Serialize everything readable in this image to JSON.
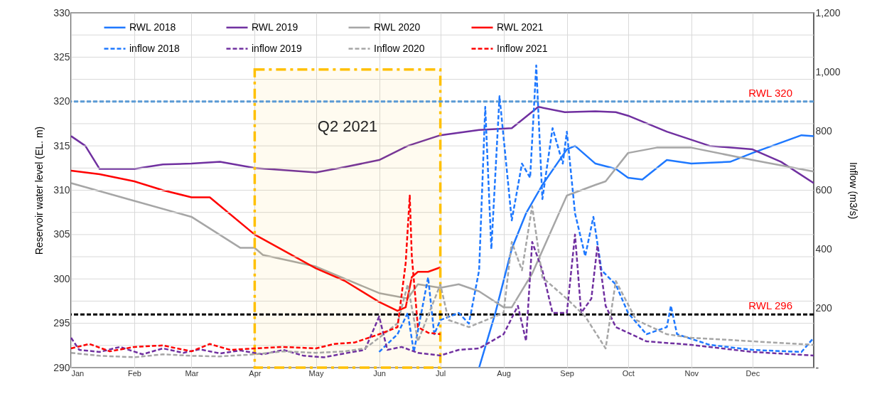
{
  "chart_data": {
    "type": "line",
    "ylabel": "Reservoir water level (EL. m)",
    "y2label": "Inflow (m3/s)",
    "xlim": [
      "--01-01",
      "--12-31"
    ],
    "xticks": [
      {
        "value": "--01-01",
        "label": "Jan"
      },
      {
        "value": "--02-01",
        "label": "Feb"
      },
      {
        "value": "--03-01",
        "label": "Mar"
      },
      {
        "value": "--04-01",
        "label": "Apr"
      },
      {
        "value": "--05-01",
        "label": "May"
      },
      {
        "value": "--06-01",
        "label": "Jun"
      },
      {
        "value": "--07-01",
        "label": "Jul"
      },
      {
        "value": "--08-01",
        "label": "Aug"
      },
      {
        "value": "--09-01",
        "label": "Sep"
      },
      {
        "value": "--10-01",
        "label": "Oct"
      },
      {
        "value": "--11-01",
        "label": "Nov"
      },
      {
        "value": "--12-01",
        "label": "Dec"
      }
    ],
    "ylim": [
      290,
      330
    ],
    "yticks": [
      290,
      {
        "value": 292.5,
        "label": null
      },
      295,
      {
        "value": 297.5,
        "label": null
      },
      300,
      {
        "value": 302.5,
        "label": null
      },
      305,
      {
        "value": 307.5,
        "label": null
      },
      310,
      {
        "value": 312.5,
        "label": null
      },
      315,
      {
        "value": 317.5,
        "label": null
      },
      320,
      {
        "value": 322.5,
        "label": null
      },
      325,
      {
        "value": 327.5,
        "label": null
      },
      330
    ],
    "y2lim": [
      0,
      1200
    ],
    "y2ticks": [
      {
        "value": 0,
        "label": "-"
      },
      200,
      400,
      600,
      800,
      {
        "value": 1000,
        "label": "1,000"
      },
      {
        "value": 1200,
        "label": "1,200"
      }
    ],
    "grid": true,
    "legend": "top",
    "series": [
      {
        "name": "RWL 2018",
        "color": "#1e78ff",
        "line_style": "solid",
        "x": [
          "--07-20",
          "--07-28",
          "--08-05",
          "--08-12",
          "--08-20",
          "--09-01",
          "--09-05",
          "--09-15",
          "--09-25",
          "--10-01",
          "--10-08",
          "--10-20",
          "--11-01",
          "--11-20",
          "--12-01",
          "--12-25",
          "--12-31"
        ],
        "values": [
          290,
          296.2,
          303.4,
          307.4,
          310.6,
          314.6,
          315,
          313,
          312.4,
          311.4,
          311.2,
          313.4,
          313,
          313.2,
          314.2,
          316.2,
          316.1
        ]
      },
      {
        "name": "RWL 2019",
        "color": "#7030a0",
        "line_style": "solid",
        "x": [
          "--01-01",
          "--01-08",
          "--01-15",
          "--02-01",
          "--02-15",
          "--03-01",
          "--03-15",
          "--04-01",
          "--05-01",
          "--05-15",
          "--06-01",
          "--06-15",
          "--07-01",
          "--07-20",
          "--08-05",
          "--08-18",
          "--08-31",
          "--09-15",
          "--09-25",
          "--10-01",
          "--10-20",
          "--11-10",
          "--12-01",
          "--12-15",
          "--12-31"
        ],
        "values": [
          316.1,
          315,
          312.4,
          312.4,
          312.9,
          313,
          313.2,
          312.5,
          312,
          312.6,
          313.4,
          315,
          316.2,
          316.8,
          317,
          319.4,
          318.8,
          318.9,
          318.8,
          318.4,
          316.6,
          315,
          314.6,
          313.2,
          310.8
        ]
      },
      {
        "name": "RWL 2020",
        "color": "#a6a6a6",
        "line_style": "solid",
        "x": [
          "--01-01",
          "--02-01",
          "--03-01",
          "--03-25",
          "--04-01",
          "--04-05",
          "--05-01",
          "--06-01",
          "--06-15",
          "--06-20",
          "--07-01",
          "--07-10",
          "--07-20",
          "--08-01",
          "--08-05",
          "--08-15",
          "--09-01",
          "--09-15",
          "--09-20",
          "--10-01",
          "--10-15",
          "--11-01",
          "--12-01",
          "--12-31"
        ],
        "values": [
          310.8,
          308.8,
          307,
          303.5,
          303.5,
          302.7,
          301.4,
          298.4,
          297.8,
          299.4,
          299,
          299.4,
          298.6,
          296.8,
          296.8,
          300.6,
          309.4,
          310.6,
          311,
          314.2,
          314.8,
          314.8,
          313.4,
          312.1
        ]
      },
      {
        "name": "RWL 2021",
        "color": "#ff0000",
        "line_style": "solid",
        "x": [
          "--01-01",
          "--01-15",
          "--02-01",
          "--02-15",
          "--03-01",
          "--03-10",
          "--04-01",
          "--05-01",
          "--05-15",
          "--06-01",
          "--06-10",
          "--06-14",
          "--06-17",
          "--06-20",
          "--06-25",
          "--07-01"
        ],
        "values": [
          312.2,
          311.8,
          311,
          310,
          309.2,
          309.2,
          305,
          301.2,
          299.8,
          297.4,
          296.4,
          296.8,
          300.2,
          300.8,
          300.8,
          301.3
        ]
      },
      {
        "name": "inflow 2018",
        "color": "#1e78ff",
        "line_style": "dashed",
        "axis": "y2",
        "x": [
          "--06-01",
          "--06-10",
          "--06-15",
          "--06-18",
          "--06-25",
          "--06-28",
          "--07-01",
          "--07-10",
          "--07-15",
          "--07-20",
          "--07-23",
          "--07-26",
          "--07-30",
          "--08-05",
          "--08-10",
          "--08-14",
          "--08-17",
          "--08-20",
          "--08-25",
          "--08-30",
          "--09-01",
          "--09-05",
          "--09-10",
          "--09-14",
          "--09-18",
          "--09-25",
          "--10-01",
          "--10-10",
          "--10-20",
          "--10-22",
          "--10-25",
          "--11-10",
          "--12-01",
          "--12-25",
          "--12-31"
        ],
        "values": [
          53,
          113,
          185,
          53,
          305,
          113,
          161,
          185,
          149,
          329,
          882,
          401,
          918,
          498,
          690,
          642,
          1022,
          570,
          810,
          690,
          798,
          522,
          377,
          510,
          329,
          281,
          185,
          113,
          137,
          209,
          113,
          77,
          60,
          53,
          101
        ]
      },
      {
        "name": "inflow 2019",
        "color": "#7030a0",
        "line_style": "dashed",
        "axis": "y2",
        "x": [
          "--01-01",
          "--01-05",
          "--01-15",
          "--01-25",
          "--02-05",
          "--02-15",
          "--02-25",
          "--03-05",
          "--03-15",
          "--03-25",
          "--04-05",
          "--04-15",
          "--04-25",
          "--05-05",
          "--05-15",
          "--05-25",
          "--06-01",
          "--06-05",
          "--06-12",
          "--06-20",
          "--07-01",
          "--07-10",
          "--07-20",
          "--08-01",
          "--08-08",
          "--08-12",
          "--08-15",
          "--08-20",
          "--08-25",
          "--09-01",
          "--09-05",
          "--09-08",
          "--09-13",
          "--09-16",
          "--09-20",
          "--09-25",
          "--10-10",
          "--11-01",
          "--12-01",
          "--12-31"
        ],
        "values": [
          101,
          60,
          53,
          70,
          45,
          65,
          50,
          62,
          48,
          58,
          45,
          60,
          40,
          35,
          48,
          60,
          173,
          60,
          70,
          50,
          41,
          60,
          65,
          113,
          209,
          90,
          425,
          329,
          185,
          185,
          450,
          185,
          233,
          413,
          209,
          137,
          89,
          77,
          53,
          41
        ]
      },
      {
        "name": "Inflow 2020",
        "color": "#a6a6a6",
        "line_style": "dashed",
        "axis": "y2",
        "x": [
          "--01-01",
          "--01-15",
          "--02-01",
          "--02-15",
          "--03-01",
          "--03-15",
          "--04-01",
          "--04-15",
          "--05-01",
          "--05-15",
          "--05-25",
          "--06-01",
          "--06-10",
          "--06-15",
          "--06-20",
          "--07-01",
          "--07-05",
          "--07-15",
          "--08-01",
          "--08-05",
          "--08-10",
          "--08-15",
          "--08-20",
          "--09-01",
          "--09-10",
          "--09-20",
          "--09-25",
          "--10-05",
          "--10-20",
          "--11-01",
          "--12-31"
        ],
        "values": [
          50,
          40,
          35,
          45,
          40,
          38,
          45,
          55,
          50,
          55,
          65,
          101,
          150,
          281,
          89,
          281,
          161,
          137,
          185,
          425,
          329,
          546,
          305,
          233,
          173,
          65,
          293,
          161,
          113,
          101,
          77
        ]
      },
      {
        "name": "Inflow 2021",
        "color": "#ff0000",
        "line_style": "dashed",
        "axis": "y2",
        "x": [
          "--01-01",
          "--01-10",
          "--01-20",
          "--02-01",
          "--02-15",
          "--03-01",
          "--03-10",
          "--03-20",
          "--04-01",
          "--04-15",
          "--05-01",
          "--05-10",
          "--05-20",
          "--06-01",
          "--06-10",
          "--06-14",
          "--06-16",
          "--06-17",
          "--06-20",
          "--06-25",
          "--07-01"
        ],
        "values": [
          65,
          80,
          55,
          70,
          75,
          55,
          80,
          60,
          65,
          70,
          65,
          80,
          85,
          113,
          137,
          353,
          582,
          377,
          137,
          118,
          113
        ]
      }
    ],
    "ref_lines": [
      {
        "axis": "y",
        "value": 320,
        "label": "RWL 320",
        "color": "#5b9bd5",
        "line_style": "dashed"
      },
      {
        "axis": "y",
        "value": 296,
        "label": "RWL 296",
        "color": "#000000",
        "line_style": "dashed"
      }
    ],
    "bands": [
      {
        "axis": "x",
        "from": "--04-01",
        "to": "--07-01",
        "label": "Q2 2021",
        "color": "#ffc000"
      }
    ]
  }
}
